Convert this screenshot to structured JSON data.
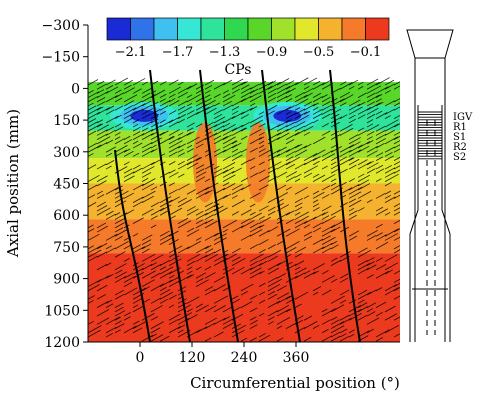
{
  "chart_data": {
    "type": "heatmap",
    "title": "",
    "xlabel": "Circumferential position (°)",
    "ylabel": "Axial position (mm)",
    "x_ticks": [
      0,
      120,
      240,
      360
    ],
    "y_ticks": [
      -300,
      -150,
      0,
      150,
      300,
      450,
      600,
      750,
      900,
      1050,
      1200
    ],
    "ylim": [
      -300,
      1200
    ],
    "y_inverted": true,
    "xlim": [
      -120,
      600
    ],
    "data_extent": {
      "y_min": -30,
      "y_max": 1200
    },
    "colorbar": {
      "label": "CPs",
      "tick_labels": [
        "−2.1",
        "−1.7",
        "−1.3",
        "−0.9",
        "−0.5",
        "−0.1"
      ],
      "ticks": [
        -2.1,
        -1.7,
        -1.3,
        -0.9,
        -0.5,
        -0.1
      ],
      "range": [
        -2.3,
        0.1
      ],
      "levels": 12,
      "colors": [
        "#1a2bd6",
        "#2f72ea",
        "#3fc0f0",
        "#35e7d4",
        "#2fe39a",
        "#30d84f",
        "#58d62a",
        "#9fe12b",
        "#e1e82c",
        "#f4b22e",
        "#f57a2a",
        "#ec3a1f"
      ]
    },
    "contour_bands": [
      {
        "y_from": -30,
        "y_to": 80,
        "cp": -1.0
      },
      {
        "y_from": 80,
        "y_to": 200,
        "cp": -1.4
      },
      {
        "y_from": 200,
        "y_to": 330,
        "cp": -0.9
      },
      {
        "y_from": 330,
        "y_to": 450,
        "cp": -0.55
      },
      {
        "y_from": 450,
        "y_to": 620,
        "cp": -0.35
      },
      {
        "y_from": 620,
        "y_to": 780,
        "cp": -0.25
      },
      {
        "y_from": 780,
        "y_to": 1200,
        "cp": -0.05
      }
    ],
    "low_pressure_zones": [
      {
        "x": 10,
        "y": 130,
        "cp": -2.1
      },
      {
        "x": 340,
        "y": 130,
        "cp": -2.1
      }
    ],
    "compressor_labels": [
      "IGV",
      "R1",
      "S1",
      "R2",
      "S2"
    ]
  }
}
